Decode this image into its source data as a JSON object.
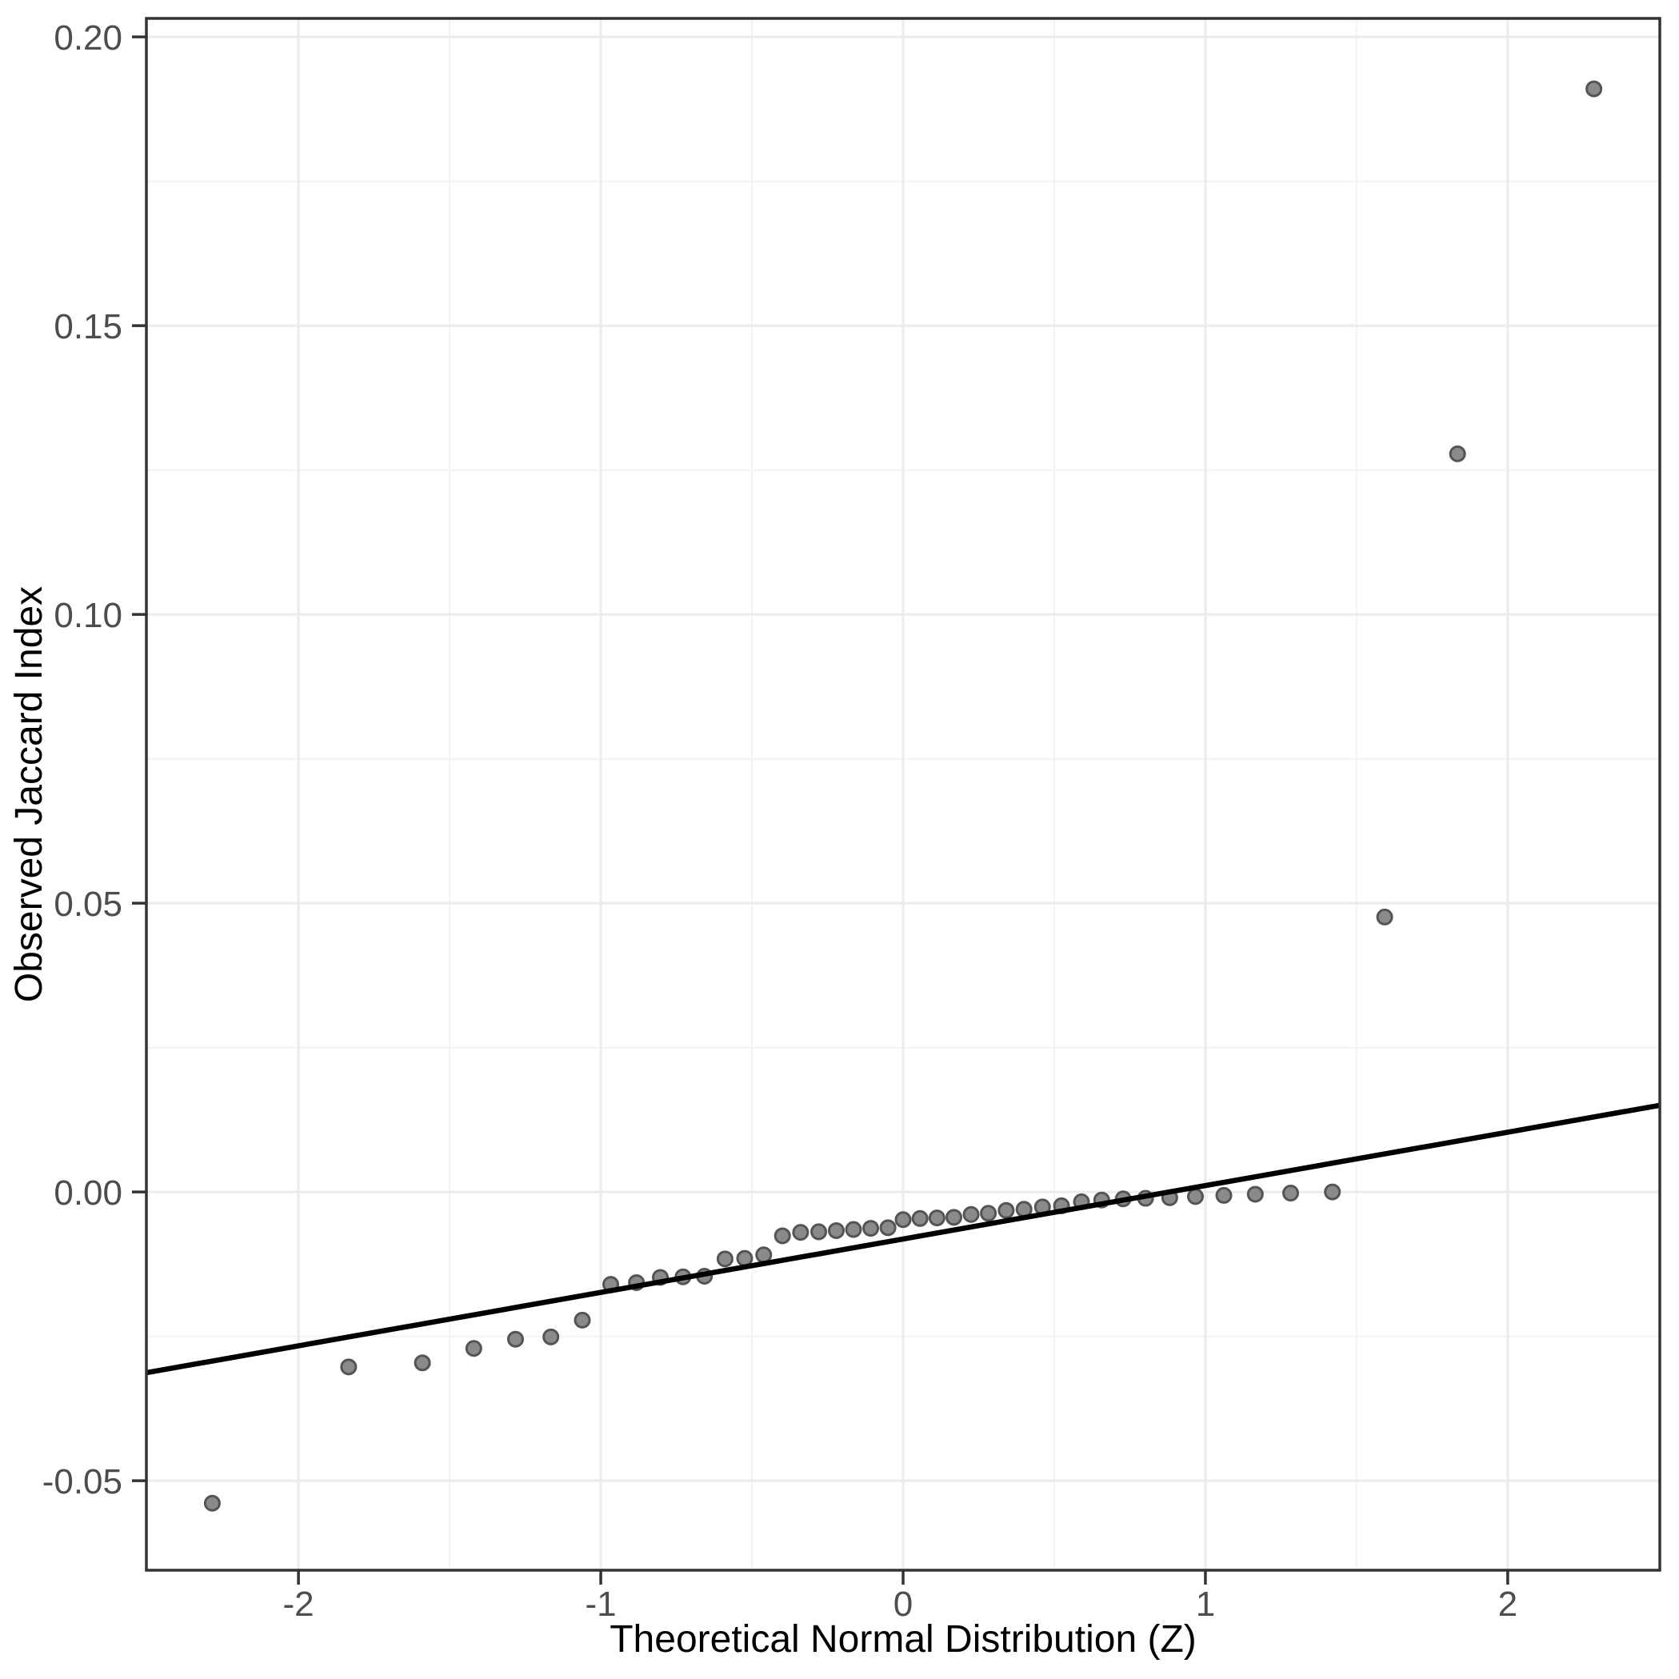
{
  "chart_data": {
    "type": "scatter",
    "subtype": "qq-plot",
    "title": "",
    "xlabel": "Theoretical Normal Distribution (Z)",
    "ylabel": "Observed Jaccard Index",
    "xlim": [
      -2.503,
      2.503
    ],
    "ylim": [
      -0.0655,
      0.2032
    ],
    "grid": true,
    "legend_position": "none",
    "x_ticks": [
      {
        "value": -2,
        "label": "-2"
      },
      {
        "value": -1,
        "label": "-1"
      },
      {
        "value": 0,
        "label": "0"
      },
      {
        "value": 1,
        "label": "1"
      },
      {
        "value": 2,
        "label": "2"
      }
    ],
    "y_ticks": [
      {
        "value": 0.2,
        "label": "0.20"
      },
      {
        "value": 0.15,
        "label": "0.15"
      },
      {
        "value": 0.1,
        "label": "0.10"
      },
      {
        "value": 0.05,
        "label": "0.05"
      },
      {
        "value": 0.0,
        "label": "0.00"
      },
      {
        "value": -0.05,
        "label": "-0.05"
      }
    ],
    "x_minor_gridlines": [
      -1.5,
      -0.5,
      0.5,
      1.5
    ],
    "y_minor_gridlines": [
      0.175,
      0.125,
      0.075,
      0.025,
      -0.025
    ],
    "points": [
      {
        "z": -2.285,
        "jaccard": -0.0539
      },
      {
        "z": -1.834,
        "jaccard": -0.0303
      },
      {
        "z": -1.59,
        "jaccard": -0.0296
      },
      {
        "z": -1.42,
        "jaccard": -0.0271
      },
      {
        "z": -1.282,
        "jaccard": -0.0255
      },
      {
        "z": -1.165,
        "jaccard": -0.0251
      },
      {
        "z": -1.061,
        "jaccard": -0.0222
      },
      {
        "z": -0.967,
        "jaccard": -0.016
      },
      {
        "z": -0.882,
        "jaccard": -0.0157
      },
      {
        "z": -0.803,
        "jaccard": -0.0148
      },
      {
        "z": -0.728,
        "jaccard": -0.0147
      },
      {
        "z": -0.657,
        "jaccard": -0.0146
      },
      {
        "z": -0.589,
        "jaccard": -0.0116
      },
      {
        "z": -0.524,
        "jaccard": -0.0115
      },
      {
        "z": -0.461,
        "jaccard": -0.0109
      },
      {
        "z": -0.399,
        "jaccard": -0.0076
      },
      {
        "z": -0.339,
        "jaccard": -0.007
      },
      {
        "z": -0.279,
        "jaccard": -0.0069
      },
      {
        "z": -0.221,
        "jaccard": -0.0067
      },
      {
        "z": -0.164,
        "jaccard": -0.0065
      },
      {
        "z": -0.107,
        "jaccard": -0.0063
      },
      {
        "z": -0.05,
        "jaccard": -0.0062
      },
      {
        "z": 0.0,
        "jaccard": -0.0048
      },
      {
        "z": 0.056,
        "jaccard": -0.0046
      },
      {
        "z": 0.112,
        "jaccard": -0.0045
      },
      {
        "z": 0.168,
        "jaccard": -0.0044
      },
      {
        "z": 0.225,
        "jaccard": -0.0039
      },
      {
        "z": 0.282,
        "jaccard": -0.0037
      },
      {
        "z": 0.341,
        "jaccard": -0.0032
      },
      {
        "z": 0.4,
        "jaccard": -0.003
      },
      {
        "z": 0.461,
        "jaccard": -0.0026
      },
      {
        "z": 0.524,
        "jaccard": -0.0024
      },
      {
        "z": 0.59,
        "jaccard": -0.0017
      },
      {
        "z": 0.657,
        "jaccard": -0.0014
      },
      {
        "z": 0.728,
        "jaccard": -0.0012
      },
      {
        "z": 0.802,
        "jaccard": -0.0011
      },
      {
        "z": 0.882,
        "jaccard": -0.001
      },
      {
        "z": 0.967,
        "jaccard": -0.0008
      },
      {
        "z": 1.061,
        "jaccard": -0.0006
      },
      {
        "z": 1.165,
        "jaccard": -0.0004
      },
      {
        "z": 1.282,
        "jaccard": -0.0002
      },
      {
        "z": 1.42,
        "jaccard": 0.0
      },
      {
        "z": 1.593,
        "jaccard": 0.0476
      },
      {
        "z": 1.834,
        "jaccard": 0.1278
      },
      {
        "z": 2.285,
        "jaccard": 0.191
      }
    ],
    "reference_line": {
      "x1": -2.503,
      "y1": -0.0313,
      "x2": 2.503,
      "y2": 0.015,
      "slope": 0.00925,
      "intercept": -0.0082
    },
    "colors": {
      "background": "#ffffff",
      "panel_background": "#ffffff",
      "panel_border": "#333333",
      "grid_major": "#ebebeb",
      "grid_minor": "#f4f4f4",
      "point_fill": "#8a8a8a",
      "point_stroke": "#545454",
      "reference_line": "#000000",
      "tick_mark": "#333333",
      "tick_label": "#4d4d4d",
      "axis_title": "#000000"
    }
  }
}
